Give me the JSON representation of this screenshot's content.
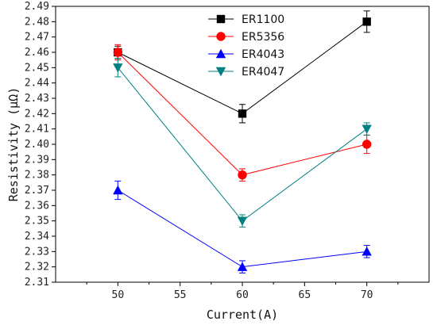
{
  "chart_data": {
    "type": "line",
    "title": "",
    "xlabel": "Current(A)",
    "ylabel": "Resistivity (μΩ)",
    "x": [
      50,
      60,
      70
    ],
    "xlim": [
      45,
      75
    ],
    "ylim": [
      2.31,
      2.49
    ],
    "x_ticks": [
      50,
      55,
      60,
      65,
      70
    ],
    "y_ticks": [
      2.31,
      2.32,
      2.33,
      2.34,
      2.35,
      2.36,
      2.37,
      2.38,
      2.39,
      2.4,
      2.41,
      2.42,
      2.43,
      2.44,
      2.45,
      2.46,
      2.47,
      2.48,
      2.49
    ],
    "grid": false,
    "legend_position": "top-center",
    "series": [
      {
        "name": "ER1100",
        "values": [
          2.46,
          2.42,
          2.48
        ],
        "errors": [
          0.004,
          0.006,
          0.007
        ],
        "color": "#000000",
        "marker": "square"
      },
      {
        "name": "ER5356",
        "values": [
          2.46,
          2.38,
          2.4
        ],
        "errors": [
          0.005,
          0.004,
          0.006
        ],
        "color": "#ff0000",
        "marker": "circle"
      },
      {
        "name": "ER4043",
        "values": [
          2.37,
          2.32,
          2.33
        ],
        "errors": [
          0.006,
          0.004,
          0.004
        ],
        "color": "#0000ff",
        "marker": "triangle-up"
      },
      {
        "name": "ER4047",
        "values": [
          2.45,
          2.35,
          2.41
        ],
        "errors": [
          0.006,
          0.004,
          0.004
        ],
        "color": "#008080",
        "marker": "triangle-down"
      }
    ]
  }
}
